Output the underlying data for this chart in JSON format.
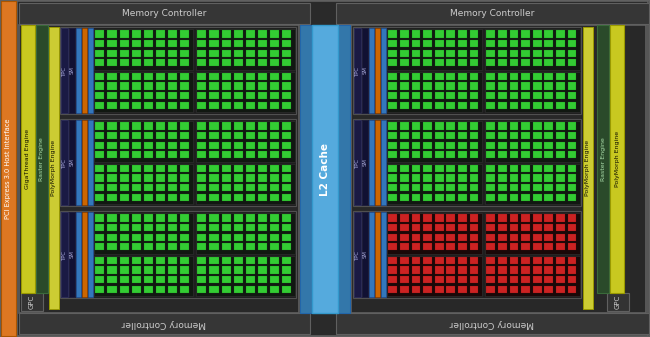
{
  "bg": "#252525",
  "border": "#606060",
  "mem_ctrl_bg": "#363636",
  "mem_ctrl_fg": "#cccccc",
  "mem_ctrl_text": "Memory Controller",
  "gpc_bg": "#2c2c2c",
  "gpc_label_bg": "#303030",
  "gigathread_bg": "#1e3a1e",
  "gigathread_fg": "#ccffcc",
  "raster_bg": "#1e3a1e",
  "raster_fg": "#ccffcc",
  "polymorph_bg": "#cccc33",
  "polymorph_fg": "#111100",
  "tpc_bg": "#202020",
  "tpc_label_bg": "#1a1a44",
  "tpc_label_fg": "#aaaadd",
  "sm_label_bg": "#111133",
  "sm_label_fg": "#aaaadd",
  "blue_stripe": "#3377bb",
  "orange_stripe": "#cc6600",
  "cuda_green": "#33cc33",
  "cuda_red": "#cc2222",
  "cuda_dark": "#885500",
  "sm_bg_green": "#111811",
  "sm_bg_red": "#1a0808",
  "sm_bg_dark": "#1a1000",
  "l2_bg": "#55aadd",
  "l2_fg": "#ffffff",
  "l2_side_bg": "#3377aa",
  "pcie_bg": "#dd7722",
  "pcie_fg": "#ffffff",
  "pcie_text": "PCI Express 3.0 Host Interface",
  "l2_text": "L2 Cache",
  "mem_ctrl_text_bottom": "Memory Controller"
}
